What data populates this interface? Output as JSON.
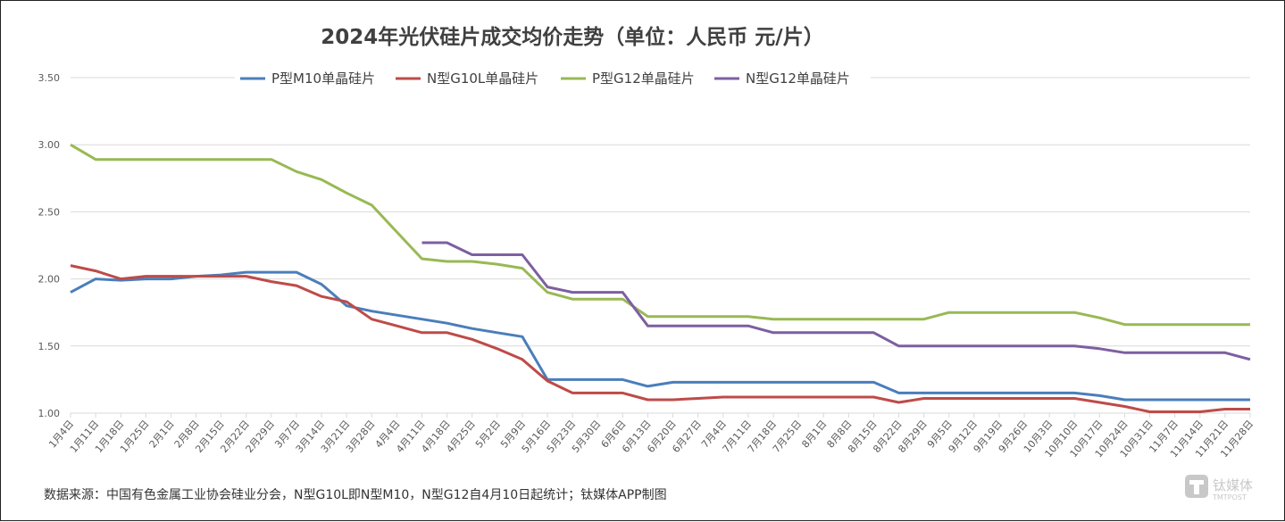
{
  "chart_data": {
    "type": "line",
    "title": "2024年光伏硅片成交均价走势（单位：人民币 元/片）",
    "xlabel": "",
    "ylabel": "",
    "ylim": [
      1.0,
      3.5
    ],
    "yticks": [
      "1.00",
      "1.50",
      "2.00",
      "2.50",
      "3.00",
      "3.50"
    ],
    "grid": true,
    "legend_position": "top",
    "categories": [
      "1月4日",
      "1月11日",
      "1月18日",
      "1月25日",
      "2月1日",
      "2月8日",
      "2月15日",
      "2月22日",
      "2月29日",
      "3月7日",
      "3月14日",
      "3月21日",
      "3月28日",
      "4月4日",
      "4月11日",
      "4月18日",
      "4月25日",
      "5月2日",
      "5月9日",
      "5月16日",
      "5月23日",
      "5月30日",
      "6月6日",
      "6月13日",
      "6月20日",
      "6月27日",
      "7月4日",
      "7月11日",
      "7月18日",
      "7月25日",
      "8月1日",
      "8月8日",
      "8月15日",
      "8月22日",
      "8月29日",
      "9月5日",
      "9月12日",
      "9月19日",
      "9月26日",
      "10月3日",
      "10月10日",
      "10月17日",
      "10月24日",
      "10月31日",
      "11月7日",
      "11月14日",
      "11月21日",
      "11月28日"
    ],
    "series": [
      {
        "name": "P型M10单晶硅片",
        "color": "#4a7ebb",
        "values": [
          1.9,
          2.0,
          1.99,
          2.0,
          2.0,
          2.02,
          2.03,
          2.05,
          2.05,
          2.05,
          1.96,
          1.8,
          1.76,
          1.73,
          1.7,
          1.67,
          1.63,
          1.6,
          1.57,
          1.25,
          1.25,
          1.25,
          1.25,
          1.2,
          1.23,
          1.23,
          1.23,
          1.23,
          1.23,
          1.23,
          1.23,
          1.23,
          1.23,
          1.15,
          1.15,
          1.15,
          1.15,
          1.15,
          1.15,
          1.15,
          1.15,
          1.13,
          1.1,
          1.1,
          1.1,
          1.1,
          1.1,
          1.1
        ]
      },
      {
        "name": "N型G10L单晶硅片",
        "color": "#be4b48",
        "values": [
          2.1,
          2.06,
          2.0,
          2.02,
          2.02,
          2.02,
          2.02,
          2.02,
          1.98,
          1.95,
          1.87,
          1.83,
          1.7,
          1.65,
          1.6,
          1.6,
          1.55,
          1.48,
          1.4,
          1.24,
          1.15,
          1.15,
          1.15,
          1.1,
          1.1,
          1.11,
          1.12,
          1.12,
          1.12,
          1.12,
          1.12,
          1.12,
          1.12,
          1.08,
          1.11,
          1.11,
          1.11,
          1.11,
          1.11,
          1.11,
          1.11,
          1.08,
          1.05,
          1.01,
          1.01,
          1.01,
          1.03,
          1.03
        ]
      },
      {
        "name": "P型G12单晶硅片",
        "color": "#98b954",
        "values": [
          3.0,
          2.89,
          2.89,
          2.89,
          2.89,
          2.89,
          2.89,
          2.89,
          2.89,
          2.8,
          2.74,
          2.64,
          2.55,
          2.35,
          2.15,
          2.13,
          2.13,
          2.11,
          2.08,
          1.9,
          1.85,
          1.85,
          1.85,
          1.72,
          1.72,
          1.72,
          1.72,
          1.72,
          1.7,
          1.7,
          1.7,
          1.7,
          1.7,
          1.7,
          1.7,
          1.75,
          1.75,
          1.75,
          1.75,
          1.75,
          1.75,
          1.71,
          1.66,
          1.66,
          1.66,
          1.66,
          1.66,
          1.66
        ]
      },
      {
        "name": "N型G12单晶硅片",
        "color": "#7d5fa0",
        "values": [
          null,
          null,
          null,
          null,
          null,
          null,
          null,
          null,
          null,
          null,
          null,
          null,
          null,
          null,
          2.27,
          2.27,
          2.18,
          2.18,
          2.18,
          1.94,
          1.9,
          1.9,
          1.9,
          1.65,
          1.65,
          1.65,
          1.65,
          1.65,
          1.6,
          1.6,
          1.6,
          1.6,
          1.6,
          1.5,
          1.5,
          1.5,
          1.5,
          1.5,
          1.5,
          1.5,
          1.5,
          1.48,
          1.45,
          1.45,
          1.45,
          1.45,
          1.45,
          1.4
        ]
      }
    ]
  },
  "footnote": "数据来源：中国有色金属工业协会硅业分会，N型G10L即N型M10，N型G12自4月10日起统计；钛媒体APP制图",
  "watermark": {
    "cn": "钛媒体",
    "en": "TMTPOST"
  }
}
